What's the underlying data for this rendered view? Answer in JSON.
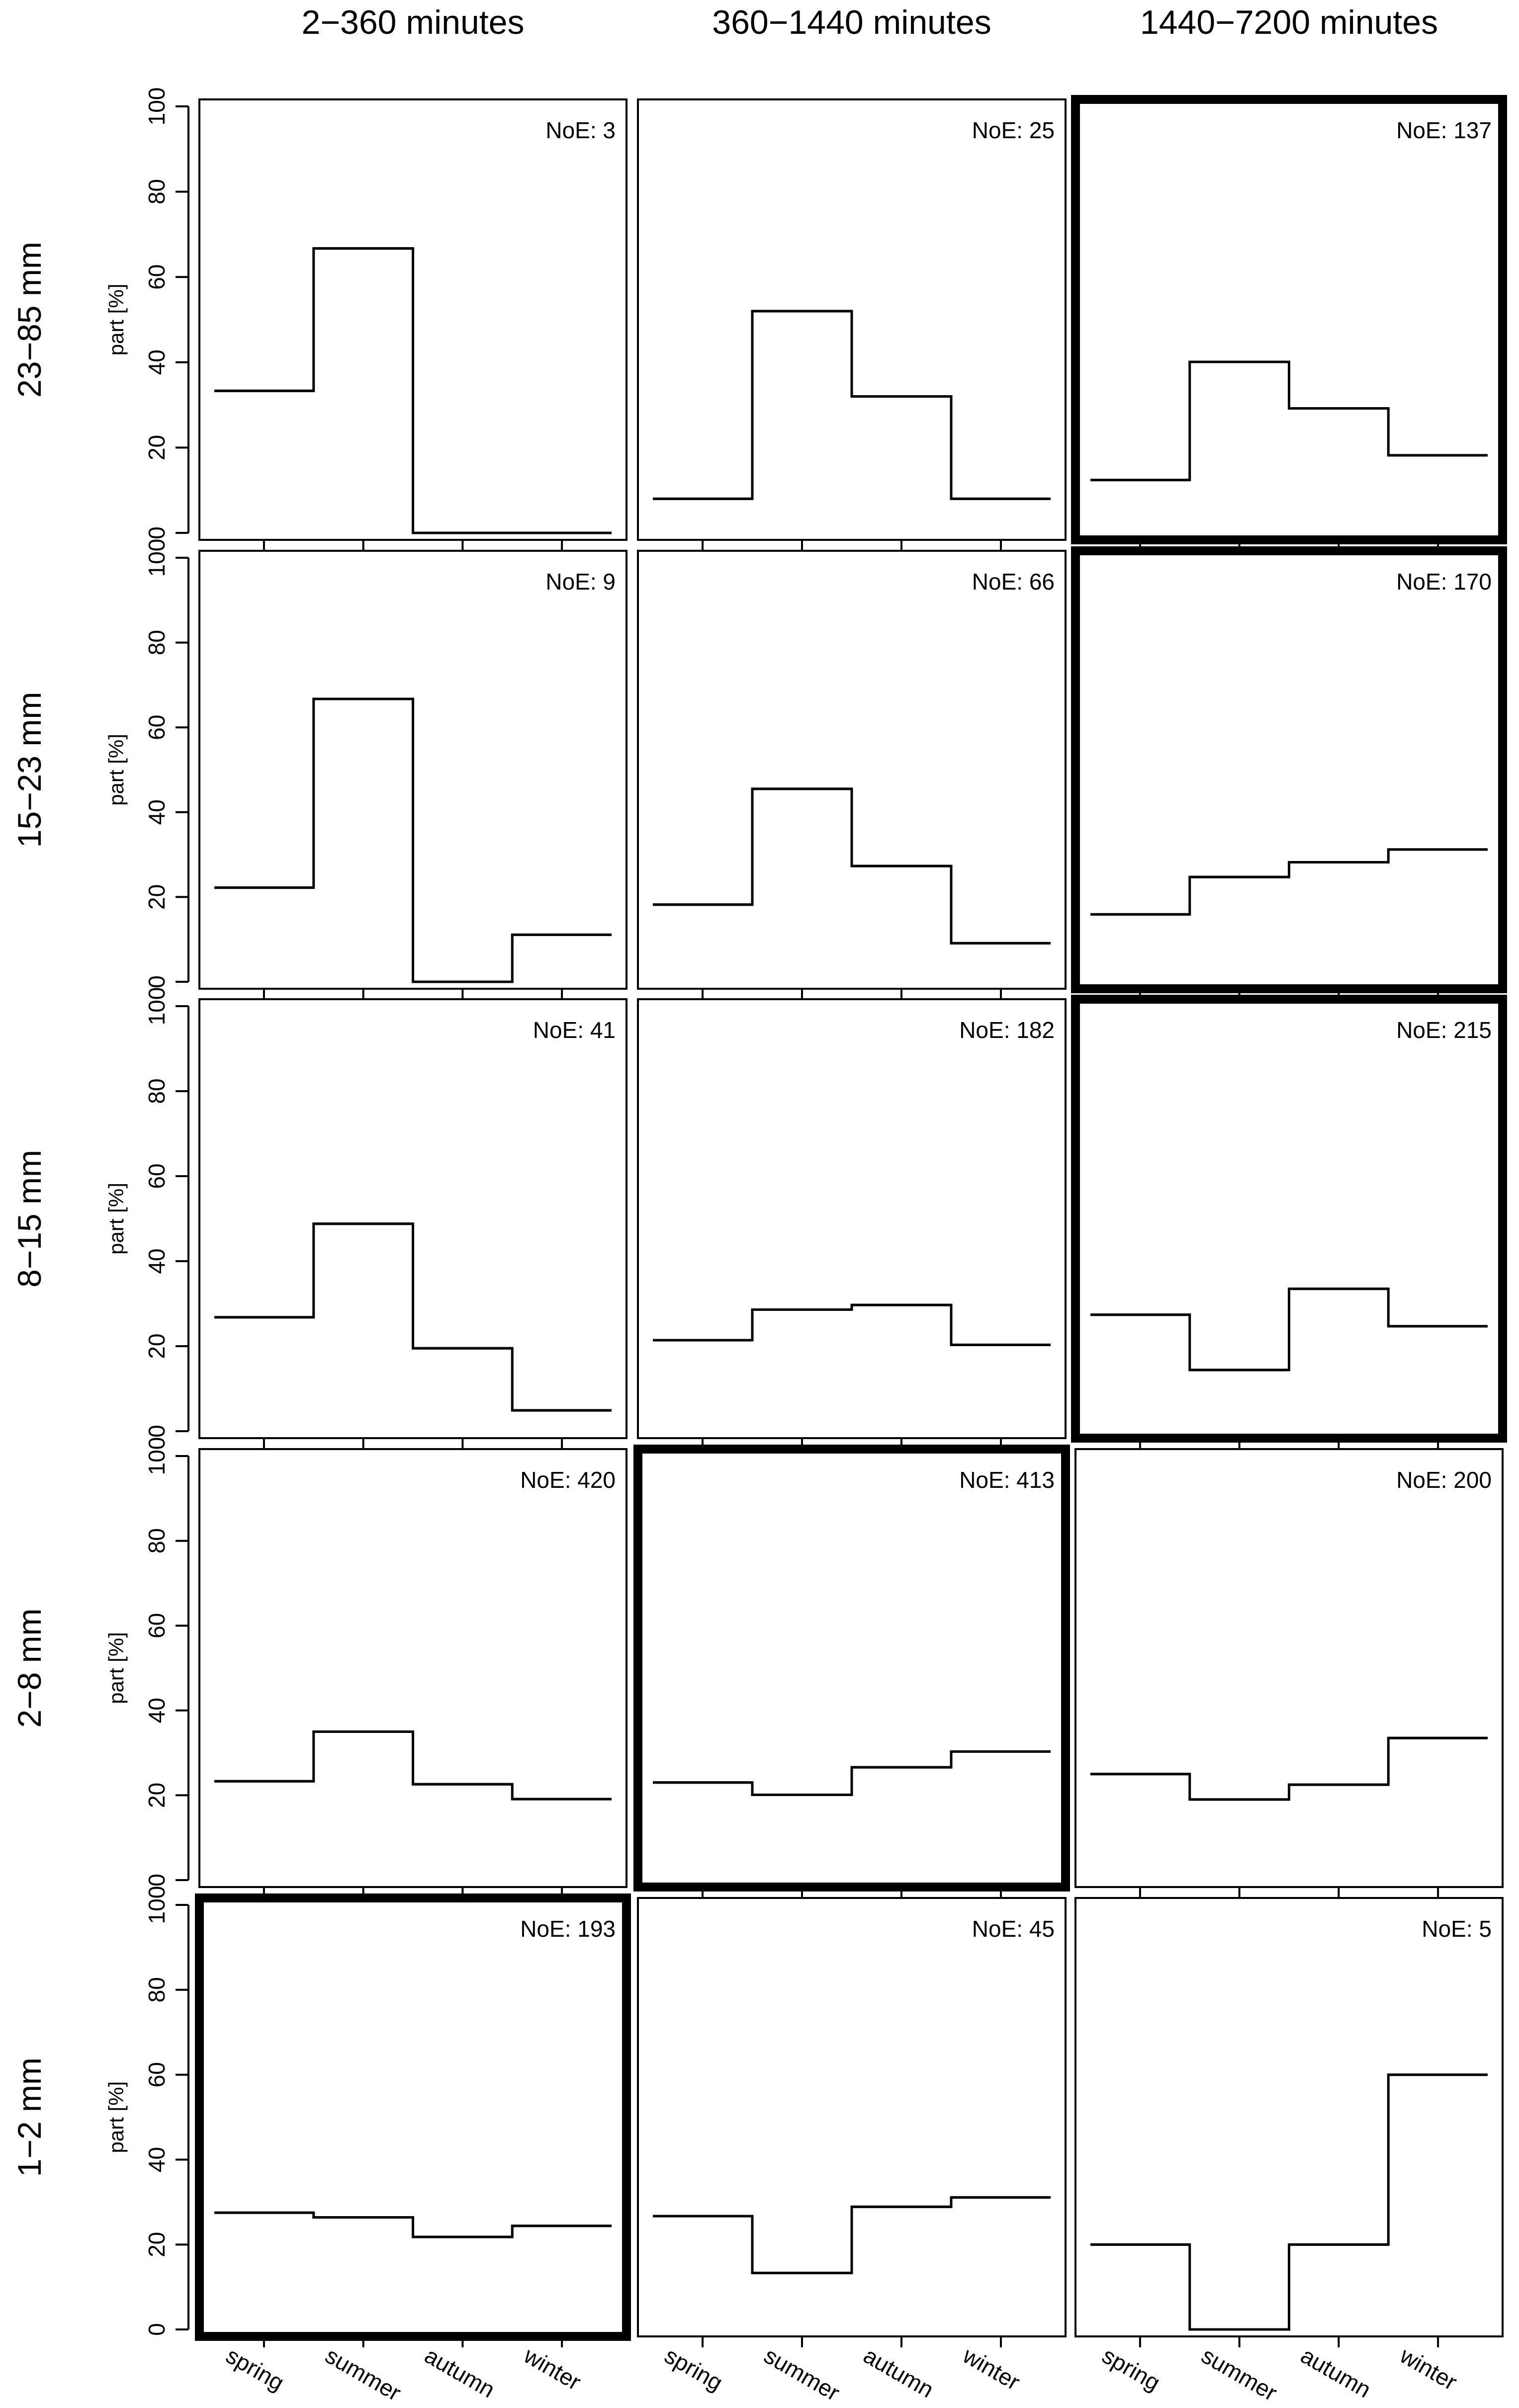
{
  "chart_data": {
    "type": "step",
    "categories": [
      "spring",
      "summer",
      "autumn",
      "winter"
    ],
    "column_titles": [
      "2−360 minutes",
      "360−1440 minutes",
      "1440−7200 minutes"
    ],
    "row_titles": [
      "23−85 mm",
      "15−23 mm",
      "8−15 mm",
      "2−8 mm",
      "1−2 mm"
    ],
    "ylabel": "part [%]",
    "ylim": [
      0,
      100
    ],
    "yticks": [
      0,
      20,
      40,
      60,
      80,
      100
    ],
    "noe_prefix": "NoE: ",
    "panels": [
      [
        {
          "noe": "3",
          "values": [
            33.3,
            66.7,
            0,
            0
          ],
          "highlight": false
        },
        {
          "noe": "25",
          "values": [
            8,
            52,
            32,
            8
          ],
          "highlight": false
        },
        {
          "noe": "137",
          "values": [
            12.4,
            40.1,
            29.2,
            18.2
          ],
          "highlight": true
        }
      ],
      [
        {
          "noe": "9",
          "values": [
            22.2,
            66.7,
            0,
            11.1
          ],
          "highlight": false
        },
        {
          "noe": "66",
          "values": [
            18.2,
            45.5,
            27.3,
            9.1
          ],
          "highlight": false
        },
        {
          "noe": "170",
          "values": [
            15.9,
            24.7,
            28.2,
            31.2
          ],
          "highlight": true
        }
      ],
      [
        {
          "noe": "41",
          "values": [
            26.8,
            48.8,
            19.5,
            4.9
          ],
          "highlight": false
        },
        {
          "noe": "182",
          "values": [
            21.4,
            28.6,
            29.7,
            20.3
          ],
          "highlight": false
        },
        {
          "noe": "215",
          "values": [
            27.4,
            14.4,
            33.5,
            24.7
          ],
          "highlight": true
        }
      ],
      [
        {
          "noe": "420",
          "values": [
            23.3,
            35.0,
            22.6,
            19.1
          ],
          "highlight": false
        },
        {
          "noe": "413",
          "values": [
            23.0,
            20.1,
            26.6,
            30.3
          ],
          "highlight": true
        },
        {
          "noe": "200",
          "values": [
            25.0,
            19.0,
            22.5,
            33.5
          ],
          "highlight": false
        }
      ],
      [
        {
          "noe": "193",
          "values": [
            27.5,
            26.4,
            21.8,
            24.4
          ],
          "highlight": true
        },
        {
          "noe": "45",
          "values": [
            26.7,
            13.3,
            28.9,
            31.1
          ],
          "highlight": false
        },
        {
          "noe": "5",
          "values": [
            20,
            0,
            20,
            60
          ],
          "highlight": false
        }
      ]
    ]
  }
}
